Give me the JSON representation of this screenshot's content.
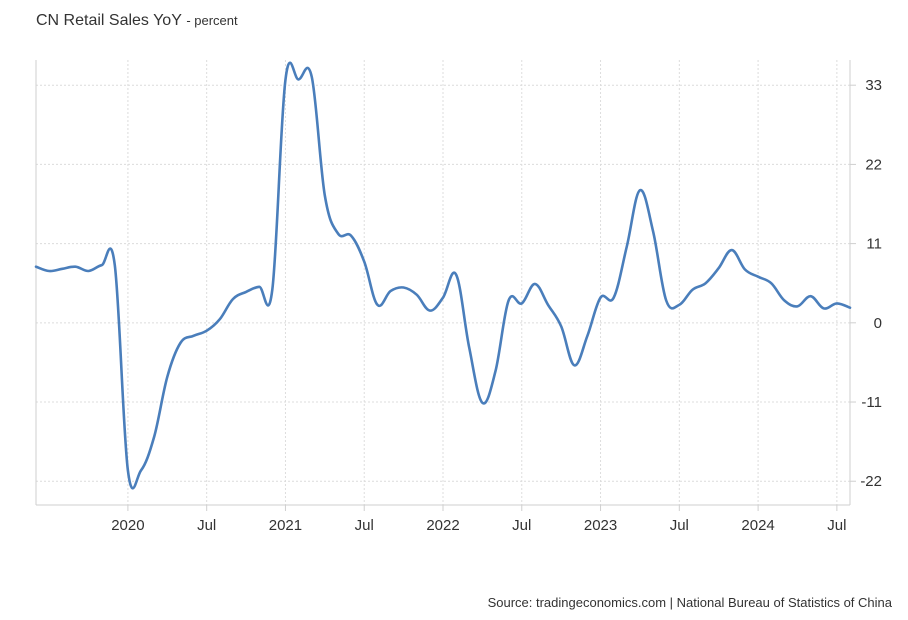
{
  "header": {
    "title": "CN Retail Sales YoY",
    "subtitle": "- percent"
  },
  "footer": {
    "source": "Source: tradingeconomics.com | National Bureau of Statistics of China"
  },
  "colors": {
    "series": "#4a7ebb"
  },
  "chart_data": {
    "type": "line",
    "title": "CN Retail Sales YoY",
    "ylabel": "percent",
    "xlabel": "",
    "grid": true,
    "ylim": [
      -25.3,
      36.5
    ],
    "y_ticks": [
      33,
      22,
      11,
      0,
      -11,
      -22
    ],
    "x_ticks": [
      {
        "date": "2020-01",
        "label": "2020"
      },
      {
        "date": "2020-07",
        "label": "Jul"
      },
      {
        "date": "2021-01",
        "label": "2021"
      },
      {
        "date": "2021-07",
        "label": "Jul"
      },
      {
        "date": "2022-01",
        "label": "2022"
      },
      {
        "date": "2022-07",
        "label": "Jul"
      },
      {
        "date": "2023-01",
        "label": "2023"
      },
      {
        "date": "2023-07",
        "label": "Jul"
      },
      {
        "date": "2024-01",
        "label": "2024"
      },
      {
        "date": "2024-07",
        "label": "Jul"
      }
    ],
    "x_range": [
      "2019-06",
      "2024-08"
    ],
    "series": [
      {
        "values": [
          {
            "x": "2019-06",
            "y": 7.8
          },
          {
            "x": "2019-07",
            "y": 7.2
          },
          {
            "x": "2019-08",
            "y": 7.5
          },
          {
            "x": "2019-09",
            "y": 7.8
          },
          {
            "x": "2019-10",
            "y": 7.2
          },
          {
            "x": "2019-11",
            "y": 8.0
          },
          {
            "x": "2019-12",
            "y": 8.0
          },
          {
            "x": "2020-01",
            "y": -20.5
          },
          {
            "x": "2020-02",
            "y": -20.5
          },
          {
            "x": "2020-03",
            "y": -15.8
          },
          {
            "x": "2020-04",
            "y": -7.5
          },
          {
            "x": "2020-05",
            "y": -2.8
          },
          {
            "x": "2020-06",
            "y": -1.8
          },
          {
            "x": "2020-07",
            "y": -1.1
          },
          {
            "x": "2020-08",
            "y": 0.5
          },
          {
            "x": "2020-09",
            "y": 3.3
          },
          {
            "x": "2020-10",
            "y": 4.3
          },
          {
            "x": "2020-11",
            "y": 5.0
          },
          {
            "x": "2020-12",
            "y": 4.6
          },
          {
            "x": "2021-01",
            "y": 33.8
          },
          {
            "x": "2021-02",
            "y": 33.8
          },
          {
            "x": "2021-03",
            "y": 34.2
          },
          {
            "x": "2021-04",
            "y": 17.7
          },
          {
            "x": "2021-05",
            "y": 12.4
          },
          {
            "x": "2021-06",
            "y": 12.1
          },
          {
            "x": "2021-07",
            "y": 8.5
          },
          {
            "x": "2021-08",
            "y": 2.5
          },
          {
            "x": "2021-09",
            "y": 4.4
          },
          {
            "x": "2021-10",
            "y": 4.9
          },
          {
            "x": "2021-11",
            "y": 3.9
          },
          {
            "x": "2021-12",
            "y": 1.7
          },
          {
            "x": "2022-01",
            "y": 3.5
          },
          {
            "x": "2022-02",
            "y": 6.7
          },
          {
            "x": "2022-03",
            "y": -3.5
          },
          {
            "x": "2022-04",
            "y": -11.1
          },
          {
            "x": "2022-05",
            "y": -6.7
          },
          {
            "x": "2022-06",
            "y": 3.1
          },
          {
            "x": "2022-07",
            "y": 2.7
          },
          {
            "x": "2022-08",
            "y": 5.4
          },
          {
            "x": "2022-09",
            "y": 2.5
          },
          {
            "x": "2022-10",
            "y": -0.5
          },
          {
            "x": "2022-11",
            "y": -5.9
          },
          {
            "x": "2022-12",
            "y": -1.8
          },
          {
            "x": "2023-01",
            "y": 3.5
          },
          {
            "x": "2023-02",
            "y": 3.5
          },
          {
            "x": "2023-03",
            "y": 10.6
          },
          {
            "x": "2023-04",
            "y": 18.4
          },
          {
            "x": "2023-05",
            "y": 12.7
          },
          {
            "x": "2023-06",
            "y": 3.1
          },
          {
            "x": "2023-07",
            "y": 2.5
          },
          {
            "x": "2023-08",
            "y": 4.6
          },
          {
            "x": "2023-09",
            "y": 5.5
          },
          {
            "x": "2023-10",
            "y": 7.6
          },
          {
            "x": "2023-11",
            "y": 10.1
          },
          {
            "x": "2023-12",
            "y": 7.4
          },
          {
            "x": "2024-01",
            "y": 6.4
          },
          {
            "x": "2024-02",
            "y": 5.5
          },
          {
            "x": "2024-03",
            "y": 3.1
          },
          {
            "x": "2024-04",
            "y": 2.3
          },
          {
            "x": "2024-05",
            "y": 3.7
          },
          {
            "x": "2024-06",
            "y": 2.0
          },
          {
            "x": "2024-07",
            "y": 2.7
          },
          {
            "x": "2024-08",
            "y": 2.1
          }
        ]
      }
    ]
  }
}
